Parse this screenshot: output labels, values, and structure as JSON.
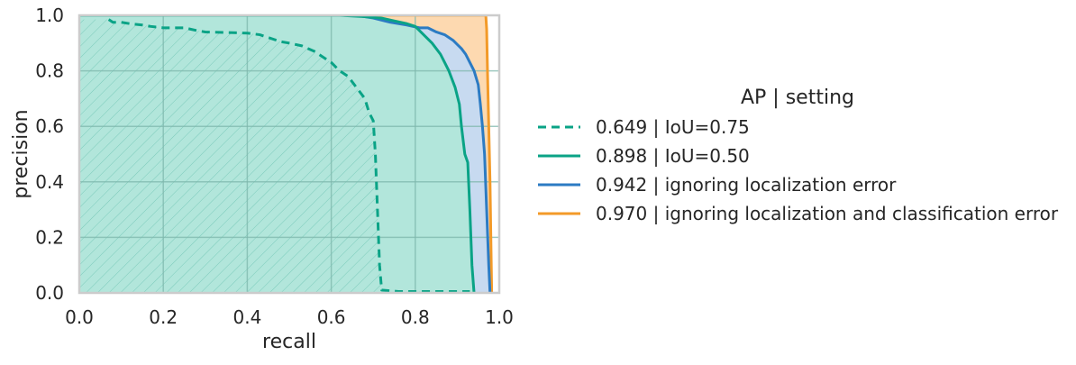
{
  "chart_data": {
    "type": "line",
    "title": "",
    "xlabel": "recall",
    "ylabel": "precision",
    "xlim": [
      0.0,
      1.0
    ],
    "ylim": [
      0.0,
      1.0
    ],
    "xticks": [
      "0.0",
      "0.2",
      "0.4",
      "0.6",
      "0.8",
      "1.0"
    ],
    "yticks": [
      "0.0",
      "0.2",
      "0.4",
      "0.6",
      "0.8",
      "1.0"
    ],
    "grid": true,
    "legend_title": "AP | setting",
    "legend_position": "outside-right",
    "series": [
      {
        "name": "0.649 | IoU=0.75",
        "color": "#0aa386",
        "style": "dashed",
        "fill": "#b2e6db",
        "hatch": true,
        "points": [
          [
            0.07,
            0.985
          ],
          [
            0.08,
            0.975
          ],
          [
            0.1,
            0.975
          ],
          [
            0.12,
            0.97
          ],
          [
            0.15,
            0.965
          ],
          [
            0.17,
            0.96
          ],
          [
            0.2,
            0.955
          ],
          [
            0.25,
            0.955
          ],
          [
            0.28,
            0.945
          ],
          [
            0.3,
            0.94
          ],
          [
            0.35,
            0.938
          ],
          [
            0.4,
            0.936
          ],
          [
            0.43,
            0.93
          ],
          [
            0.45,
            0.92
          ],
          [
            0.48,
            0.905
          ],
          [
            0.5,
            0.9
          ],
          [
            0.53,
            0.89
          ],
          [
            0.56,
            0.87
          ],
          [
            0.58,
            0.85
          ],
          [
            0.6,
            0.83
          ],
          [
            0.62,
            0.8
          ],
          [
            0.64,
            0.78
          ],
          [
            0.66,
            0.74
          ],
          [
            0.68,
            0.7
          ],
          [
            0.69,
            0.65
          ],
          [
            0.7,
            0.62
          ],
          [
            0.705,
            0.5
          ],
          [
            0.71,
            0.3
          ],
          [
            0.715,
            0.1
          ],
          [
            0.72,
            0.01
          ],
          [
            0.76,
            0.005
          ],
          [
            0.9,
            0.005
          ],
          [
            0.93,
            0.005
          ]
        ]
      },
      {
        "name": "0.898 | IoU=0.50",
        "color": "#0aa386",
        "style": "solid",
        "fill": "#b2e6db",
        "points": [
          [
            0.0,
            1.0
          ],
          [
            0.62,
            1.0
          ],
          [
            0.68,
            0.995
          ],
          [
            0.72,
            0.99
          ],
          [
            0.75,
            0.98
          ],
          [
            0.78,
            0.97
          ],
          [
            0.8,
            0.96
          ],
          [
            0.82,
            0.93
          ],
          [
            0.84,
            0.9
          ],
          [
            0.86,
            0.86
          ],
          [
            0.87,
            0.83
          ],
          [
            0.88,
            0.8
          ],
          [
            0.895,
            0.74
          ],
          [
            0.905,
            0.68
          ],
          [
            0.91,
            0.6
          ],
          [
            0.918,
            0.5
          ],
          [
            0.925,
            0.47
          ],
          [
            0.93,
            0.3
          ],
          [
            0.935,
            0.1
          ],
          [
            0.94,
            0.0
          ]
        ]
      },
      {
        "name": "0.942 | ignoring localization error",
        "color": "#2c7bc3",
        "style": "solid",
        "fill": "#c7daf0",
        "points": [
          [
            0.0,
            1.0
          ],
          [
            0.66,
            1.0
          ],
          [
            0.7,
            0.99
          ],
          [
            0.74,
            0.975
          ],
          [
            0.78,
            0.965
          ],
          [
            0.81,
            0.955
          ],
          [
            0.83,
            0.955
          ],
          [
            0.85,
            0.94
          ],
          [
            0.87,
            0.93
          ],
          [
            0.89,
            0.91
          ],
          [
            0.91,
            0.88
          ],
          [
            0.92,
            0.86
          ],
          [
            0.93,
            0.83
          ],
          [
            0.94,
            0.8
          ],
          [
            0.95,
            0.75
          ],
          [
            0.955,
            0.68
          ],
          [
            0.96,
            0.6
          ],
          [
            0.965,
            0.5
          ],
          [
            0.97,
            0.3
          ],
          [
            0.975,
            0.1
          ],
          [
            0.978,
            0.0
          ]
        ]
      },
      {
        "name": "0.970 | ignoring localization and classification error",
        "color": "#f39a28",
        "style": "solid",
        "fill": "#fdd9b0",
        "points": [
          [
            0.0,
            1.0
          ],
          [
            0.968,
            1.0
          ],
          [
            0.97,
            0.95
          ],
          [
            0.972,
            0.8
          ],
          [
            0.975,
            0.6
          ],
          [
            0.978,
            0.4
          ],
          [
            0.98,
            0.2
          ],
          [
            0.982,
            0.0
          ]
        ]
      }
    ]
  }
}
